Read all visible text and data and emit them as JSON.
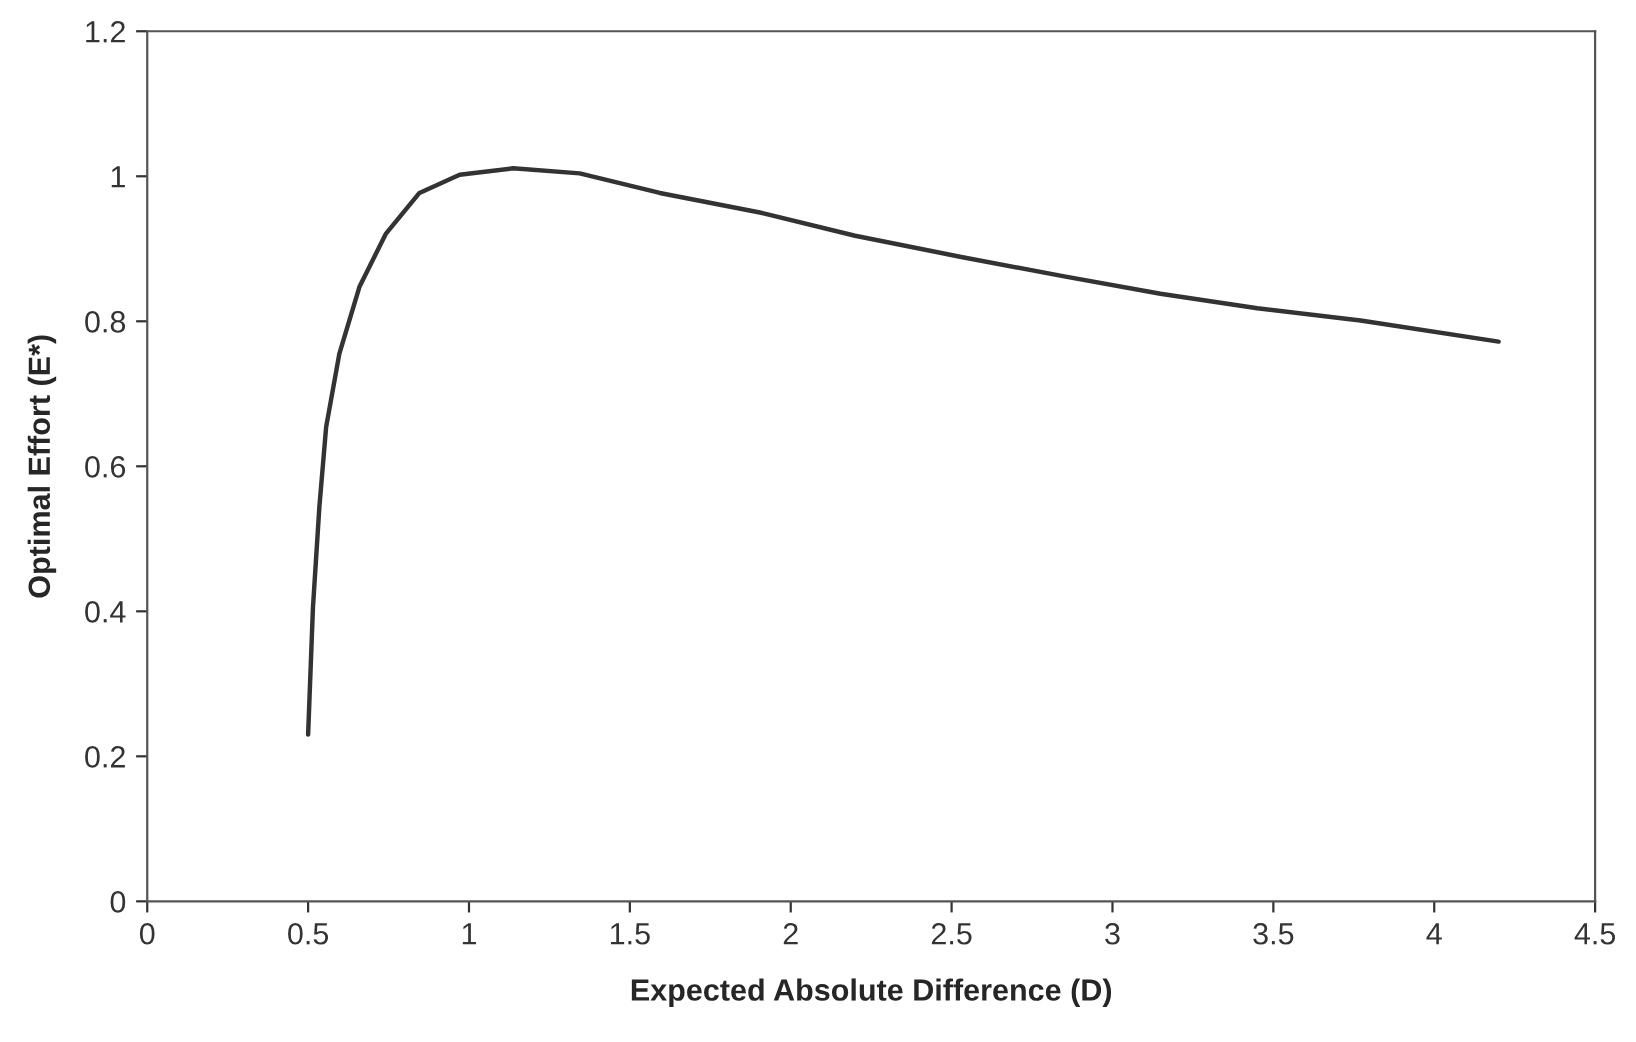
{
  "chart_data": {
    "type": "line",
    "xlabel": "Expected Absolute Difference (D)",
    "ylabel": "Optimal Effort (E*)",
    "x": [
      0.5,
      0.515,
      0.535,
      0.556,
      0.597,
      0.66,
      0.742,
      0.846,
      0.971,
      1.137,
      1.344,
      1.593,
      1.904,
      2.2,
      2.526,
      2.85,
      3.149,
      3.45,
      3.771,
      4.2
    ],
    "series": [
      {
        "color": "#333333",
        "values": [
          0.23,
          0.405,
          0.544,
          0.654,
          0.755,
          0.848,
          0.921,
          0.977,
          1.002,
          1.011,
          1.004,
          0.977,
          0.95,
          0.918,
          0.889,
          0.862,
          0.838,
          0.818,
          0.801,
          0.772
        ]
      }
    ],
    "xlim": [
      0,
      4.5
    ],
    "xticks": [
      0,
      0.5,
      1,
      1.5,
      2,
      2.5,
      3,
      3.5,
      4,
      4.5
    ],
    "ylim": [
      0,
      1.2
    ],
    "yticks": [
      0,
      0.2,
      0.4,
      0.6,
      0.8,
      1,
      1.2
    ],
    "grid": false,
    "legend": false,
    "marker": "none",
    "line_style": "solid"
  }
}
